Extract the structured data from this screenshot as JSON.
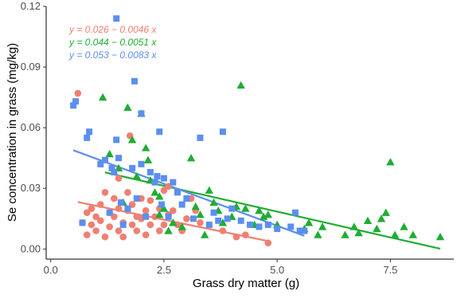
{
  "chart_data": {
    "type": "scatter",
    "xlabel": "Grass dry matter (g)",
    "ylabel": "Se concentration in grass (mg/kg)",
    "xlim": [
      -0.1,
      8.9
    ],
    "ylim": [
      -0.005,
      0.12
    ],
    "x_ticks": [
      0,
      2.5,
      5,
      7.5
    ],
    "x_tick_labels": [
      "0.0",
      "2.5",
      "5.0",
      "7.5"
    ],
    "y_ticks": [
      0,
      0.03,
      0.06,
      0.09,
      0.12
    ],
    "y_tick_labels": [
      "0.00",
      "0.03",
      "0.06",
      "0.09",
      "0.12"
    ],
    "grid": false,
    "equations": [
      {
        "text": "y = 0.026 − 0.0046 x",
        "color": "#F07F72"
      },
      {
        "text": "y = 0.044 − 0.0051 x",
        "color": "#1FAD33"
      },
      {
        "text": "y = 0.053 − 0.0083 x",
        "color": "#5B8FEF"
      }
    ],
    "series": [
      {
        "marker": "circle",
        "color": "#F07F72",
        "fit": {
          "intercept": 0.026,
          "slope": -0.0046,
          "x_range": [
            0.6,
            4.8
          ]
        },
        "points": [
          [
            0.6,
            0.077
          ],
          [
            0.7,
            0.013
          ],
          [
            0.8,
            0.018
          ],
          [
            0.8,
            0.007
          ],
          [
            0.9,
            0.02
          ],
          [
            0.9,
            0.012
          ],
          [
            1.0,
            0.016
          ],
          [
            1.0,
            0.009
          ],
          [
            1.1,
            0.022
          ],
          [
            1.1,
            0.014
          ],
          [
            1.2,
            0.028
          ],
          [
            1.2,
            0.006
          ],
          [
            1.3,
            0.018
          ],
          [
            1.3,
            0.011
          ],
          [
            1.4,
            0.025
          ],
          [
            1.4,
            0.016
          ],
          [
            1.5,
            0.035
          ],
          [
            1.5,
            0.009
          ],
          [
            1.5,
            0.02
          ],
          [
            1.6,
            0.013
          ],
          [
            1.6,
            0.006
          ],
          [
            1.7,
            0.019
          ],
          [
            1.7,
            0.028
          ],
          [
            1.75,
            0.056
          ],
          [
            1.8,
            0.012
          ],
          [
            1.8,
            0.022
          ],
          [
            1.9,
            0.016
          ],
          [
            1.9,
            0.009
          ],
          [
            2.0,
            0.025
          ],
          [
            2.0,
            0.015
          ],
          [
            2.1,
            0.019
          ],
          [
            2.1,
            0.007
          ],
          [
            2.2,
            0.012
          ],
          [
            2.2,
            0.024
          ],
          [
            2.3,
            0.016
          ],
          [
            2.4,
            0.009
          ],
          [
            2.4,
            0.02
          ],
          [
            2.5,
            0.012
          ],
          [
            2.5,
            0.029
          ],
          [
            2.6,
            0.031
          ],
          [
            2.6,
            0.017
          ],
          [
            2.7,
            0.019
          ],
          [
            2.8,
            0.012
          ],
          [
            2.9,
            0.009
          ],
          [
            3.0,
            0.015
          ],
          [
            3.1,
            0.025
          ],
          [
            3.2,
            0.019
          ],
          [
            3.3,
            0.013
          ],
          [
            3.8,
            0.009
          ],
          [
            4.1,
            0.006
          ],
          [
            4.3,
            0.007
          ],
          [
            4.8,
            0.003
          ]
        ]
      },
      {
        "marker": "triangle",
        "color": "#1FAD33",
        "fit": {
          "intercept": 0.044,
          "slope": -0.0051,
          "x_range": [
            1.2,
            8.6
          ]
        },
        "points": [
          [
            1.15,
            0.075
          ],
          [
            1.3,
            0.047
          ],
          [
            1.5,
            0.04
          ],
          [
            1.6,
            0.023
          ],
          [
            1.7,
            0.07
          ],
          [
            1.8,
            0.054
          ],
          [
            1.9,
            0.036
          ],
          [
            2.0,
            0.067
          ],
          [
            2.1,
            0.05
          ],
          [
            2.15,
            0.044
          ],
          [
            2.2,
            0.034
          ],
          [
            2.3,
            0.028
          ],
          [
            2.4,
            0.026
          ],
          [
            2.4,
            0.017
          ],
          [
            2.5,
            0.02
          ],
          [
            2.6,
            0.009
          ],
          [
            2.7,
            0.013
          ],
          [
            2.9,
            0.011
          ],
          [
            3.1,
            0.045
          ],
          [
            3.2,
            0.021
          ],
          [
            3.3,
            0.017
          ],
          [
            3.4,
            0.007
          ],
          [
            3.5,
            0.029
          ],
          [
            3.6,
            0.023
          ],
          [
            3.7,
            0.019
          ],
          [
            3.8,
            0.013
          ],
          [
            4.0,
            0.016
          ],
          [
            4.1,
            0.021
          ],
          [
            4.2,
            0.081
          ],
          [
            4.3,
            0.02
          ],
          [
            4.5,
            0.012
          ],
          [
            4.6,
            0.019
          ],
          [
            4.7,
            0.016
          ],
          [
            4.8,
            0.017
          ],
          [
            5.0,
            0.012
          ],
          [
            5.6,
            0.01
          ],
          [
            5.7,
            0.013
          ],
          [
            5.9,
            0.007
          ],
          [
            6.0,
            0.011
          ],
          [
            6.5,
            0.007
          ],
          [
            6.7,
            0.011
          ],
          [
            6.8,
            0.008
          ],
          [
            7.0,
            0.014
          ],
          [
            7.2,
            0.01
          ],
          [
            7.3,
            0.015
          ],
          [
            7.4,
            0.018
          ],
          [
            7.5,
            0.043
          ],
          [
            7.6,
            0.007
          ],
          [
            7.8,
            0.011
          ],
          [
            8.0,
            0.007
          ],
          [
            8.6,
            0.006
          ]
        ]
      },
      {
        "marker": "square",
        "color": "#5B8FEF",
        "fit": {
          "intercept": 0.053,
          "slope": -0.0083,
          "x_range": [
            0.5,
            5.6
          ]
        },
        "points": [
          [
            0.5,
            0.071
          ],
          [
            0.55,
            0.073
          ],
          [
            0.7,
            0.013
          ],
          [
            0.8,
            0.055
          ],
          [
            0.85,
            0.058
          ],
          [
            1.1,
            0.042
          ],
          [
            1.2,
            0.044
          ],
          [
            1.3,
            0.018
          ],
          [
            1.35,
            0.04
          ],
          [
            1.4,
            0.038
          ],
          [
            1.45,
            0.114
          ],
          [
            1.45,
            0.054
          ],
          [
            1.5,
            0.045
          ],
          [
            1.55,
            0.023
          ],
          [
            1.6,
            0.012
          ],
          [
            1.7,
            0.02
          ],
          [
            1.8,
            0.04
          ],
          [
            1.85,
            0.083
          ],
          [
            1.9,
            0.025
          ],
          [
            2.0,
            0.067
          ],
          [
            2.0,
            0.042
          ],
          [
            2.1,
            0.016
          ],
          [
            2.2,
            0.038
          ],
          [
            2.3,
            0.033
          ],
          [
            2.35,
            0.036
          ],
          [
            2.4,
            0.058
          ],
          [
            2.45,
            0.022
          ],
          [
            2.5,
            0.035
          ],
          [
            2.6,
            0.016
          ],
          [
            2.7,
            0.033
          ],
          [
            2.8,
            0.028
          ],
          [
            2.9,
            0.022
          ],
          [
            3.0,
            0.025
          ],
          [
            3.15,
            0.015
          ],
          [
            3.3,
            0.055
          ],
          [
            3.5,
            0.012
          ],
          [
            3.6,
            0.018
          ],
          [
            3.7,
            0.014
          ],
          [
            3.8,
            0.058
          ],
          [
            3.9,
            0.015
          ],
          [
            4.0,
            0.02
          ],
          [
            4.2,
            0.014
          ],
          [
            4.4,
            0.012
          ],
          [
            4.6,
            0.011
          ],
          [
            4.8,
            0.012
          ],
          [
            5.0,
            0.01
          ],
          [
            5.3,
            0.011
          ],
          [
            5.4,
            0.018
          ],
          [
            5.5,
            0.009
          ],
          [
            5.6,
            0.009
          ]
        ]
      }
    ]
  }
}
